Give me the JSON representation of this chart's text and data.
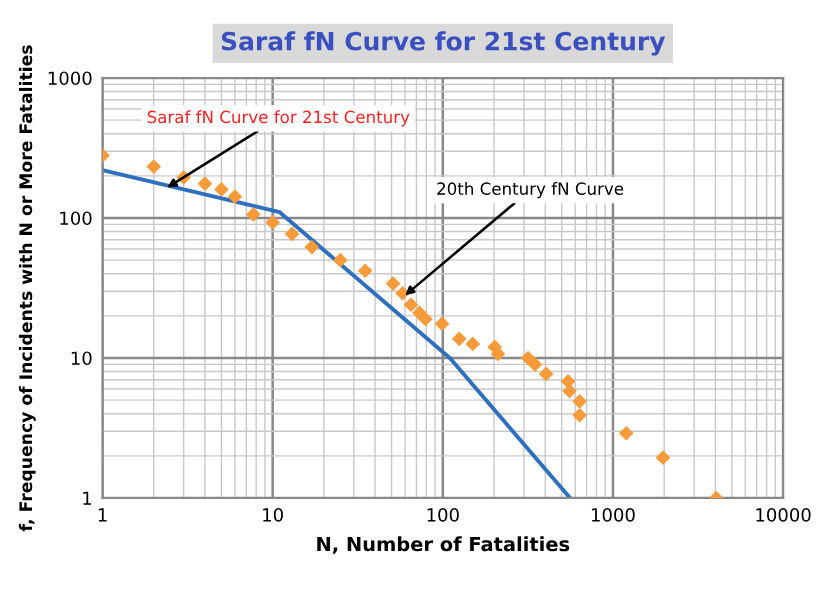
{
  "chart_data": {
    "type": "scatter",
    "title": "Saraf fN Curve for 21st Century",
    "xlabel": "N, Number of Fatalities",
    "ylabel": "f, Frequency of Incidents with N or More Fatalities",
    "log": "xy",
    "xlim": [
      1,
      10000
    ],
    "ylim": [
      1,
      1000
    ],
    "xticks": [
      1,
      10,
      100,
      1000,
      10000
    ],
    "yticks": [
      1,
      10,
      100,
      1000
    ],
    "grid": true,
    "series": [
      {
        "color": "#f79a3a",
        "marker": "diamond",
        "x": [
          1,
          2,
          3,
          4,
          5,
          6,
          7.7,
          10,
          13,
          17,
          25,
          35,
          51,
          58,
          65,
          73,
          79,
          99,
          125,
          150,
          202,
          211,
          317,
          348,
          405,
          545,
          556,
          637,
          637,
          1197,
          1968,
          4047
        ],
        "values": [
          280,
          233,
          195,
          176,
          160,
          142,
          106,
          93,
          77,
          62,
          50,
          42,
          34,
          29,
          24,
          21,
          19,
          17.6,
          13.7,
          12.6,
          12,
          10.7,
          10,
          9,
          7.7,
          6.8,
          5.8,
          4.9,
          3.9,
          2.9,
          1.94,
          1
        ]
      },
      {
        "type": "line",
        "color": "#2e6fbf",
        "marker": "none",
        "line_style": "solid",
        "x": [
          1,
          11,
          110,
          560
        ],
        "values": [
          220,
          110,
          10,
          1
        ]
      }
    ],
    "annotations": [
      {
        "text": "Saraf fN Curve for 21st Century",
        "x": 2.4,
        "y": 165
      },
      {
        "text": "20th Century fN Curve",
        "x": 60,
        "y": 28
      }
    ]
  }
}
